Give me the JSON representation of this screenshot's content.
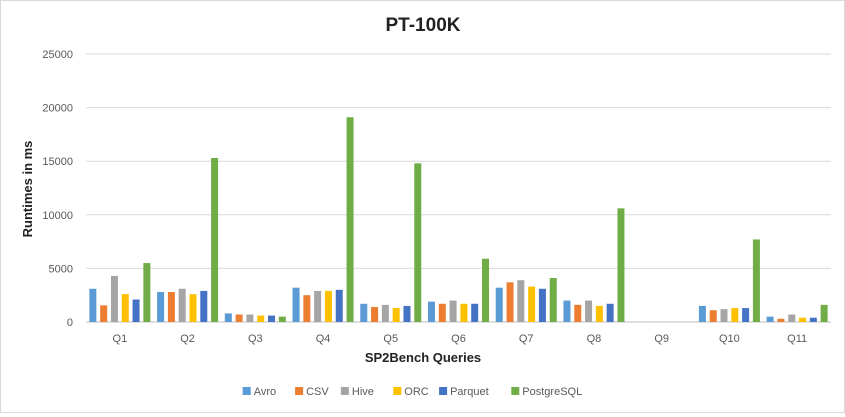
{
  "chart_data": {
    "type": "bar",
    "title": "PT-100K",
    "xlabel": "SP2Bench Queries",
    "ylabel": "Runtimes in ms",
    "ylim": [
      0,
      25000
    ],
    "yticks": [
      0,
      5000,
      10000,
      15000,
      20000,
      25000
    ],
    "grid": true,
    "legend_position": "bottom",
    "categories": [
      "Q1",
      "Q2",
      "Q3",
      "Q4",
      "Q5",
      "Q6",
      "Q7",
      "Q8",
      "Q9",
      "Q10",
      "Q11"
    ],
    "series": [
      {
        "name": "Avro",
        "color": "#5b9bd5",
        "values": [
          3100,
          2800,
          800,
          3200,
          1700,
          1900,
          3200,
          2000,
          0,
          1500,
          500
        ]
      },
      {
        "name": "CSV",
        "color": "#ed7d31",
        "values": [
          1550,
          2800,
          700,
          2500,
          1400,
          1700,
          3700,
          1600,
          0,
          1100,
          300
        ]
      },
      {
        "name": "Hive",
        "color": "#a5a5a5",
        "values": [
          4300,
          3100,
          700,
          2900,
          1600,
          2000,
          3900,
          2000,
          0,
          1200,
          700
        ]
      },
      {
        "name": "ORC",
        "color": "#ffc000",
        "values": [
          2600,
          2600,
          600,
          2900,
          1300,
          1700,
          3300,
          1500,
          0,
          1300,
          400
        ]
      },
      {
        "name": "Parquet",
        "color": "#4472c4",
        "values": [
          2100,
          2900,
          600,
          3000,
          1500,
          1700,
          3100,
          1700,
          0,
          1300,
          400
        ]
      },
      {
        "name": "PostgreSQL",
        "color": "#70ad47",
        "values": [
          5500,
          15300,
          500,
          19100,
          14800,
          5900,
          4100,
          10600,
          0,
          7700,
          1600
        ]
      }
    ]
  }
}
